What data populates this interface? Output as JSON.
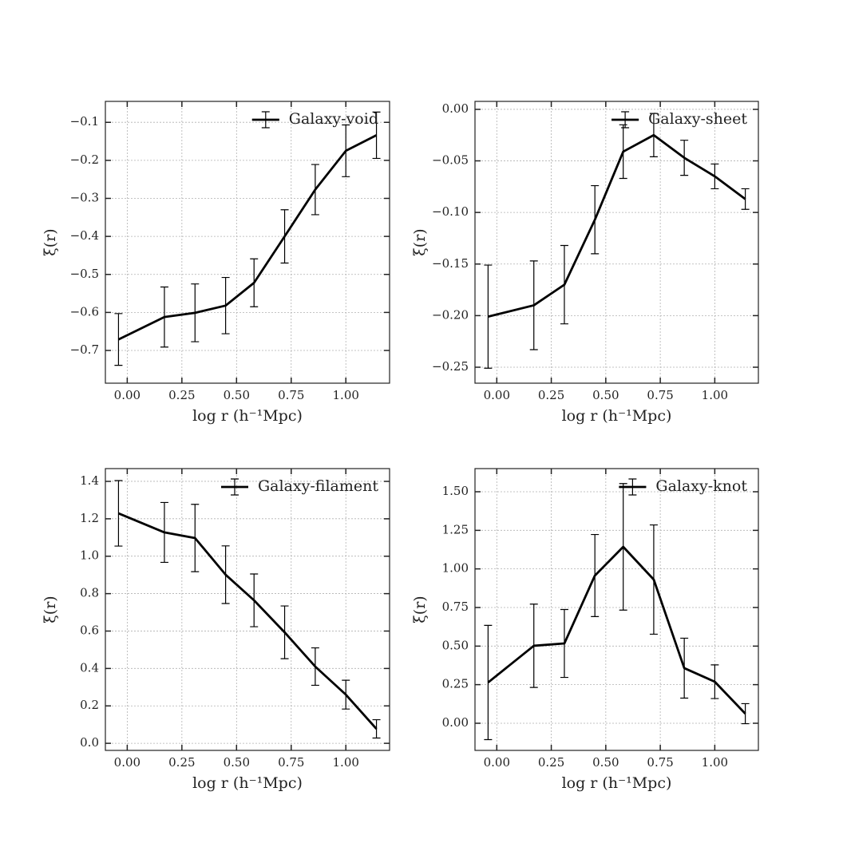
{
  "chart_data": [
    {
      "type": "line",
      "xlabel": "log r (h⁻¹Mpc)",
      "ylabel": "ξ(r)",
      "grid": true,
      "legend": "upper right",
      "x": [
        -0.04,
        0.17,
        0.31,
        0.45,
        0.58,
        0.72,
        0.86,
        1.0,
        1.14
      ],
      "series": [
        {
          "name": "Galaxy-void",
          "color": "#000000",
          "values": [
            -0.671,
            -0.612,
            -0.601,
            -0.582,
            -0.522,
            -0.4,
            -0.277,
            -0.175,
            -0.134
          ],
          "errors": [
            0.068,
            0.079,
            0.076,
            0.074,
            0.063,
            0.07,
            0.066,
            0.068,
            0.061
          ]
        }
      ],
      "xlim": [
        -0.1,
        1.2
      ],
      "ylim": [
        -0.786,
        -0.045
      ],
      "xticks": [
        {
          "value": 0,
          "label": "0.00"
        },
        {
          "value": 0.25,
          "label": "0.25"
        },
        {
          "value": 0.5,
          "label": "0.50"
        },
        {
          "value": 0.75,
          "label": "0.75"
        },
        {
          "value": 1,
          "label": "1.00"
        }
      ],
      "yticks": [
        {
          "value": -0.7,
          "label": "−0.7"
        },
        {
          "value": -0.6,
          "label": "−0.6"
        },
        {
          "value": -0.5,
          "label": "−0.5"
        },
        {
          "value": -0.4,
          "label": "−0.4"
        },
        {
          "value": -0.3,
          "label": "−0.3"
        },
        {
          "value": -0.2,
          "label": "−0.2"
        },
        {
          "value": -0.1,
          "label": "−0.1"
        }
      ]
    },
    {
      "type": "line",
      "xlabel": "log r (h⁻¹Mpc)",
      "ylabel": "ξ(r)",
      "grid": true,
      "legend": "upper right",
      "x": [
        -0.04,
        0.17,
        0.31,
        0.45,
        0.58,
        0.72,
        0.86,
        1.0,
        1.14
      ],
      "series": [
        {
          "name": "Galaxy-sheet",
          "color": "#000000",
          "values": [
            -0.201,
            -0.19,
            -0.17,
            -0.107,
            -0.041,
            -0.025,
            -0.047,
            -0.065,
            -0.087
          ],
          "errors": [
            0.05,
            0.043,
            0.038,
            0.033,
            0.026,
            0.021,
            0.017,
            0.012,
            0.01
          ]
        }
      ],
      "xlim": [
        -0.1,
        1.2
      ],
      "ylim": [
        -0.2655,
        0.0077
      ],
      "xticks": [
        {
          "value": 0,
          "label": "0.00"
        },
        {
          "value": 0.25,
          "label": "0.25"
        },
        {
          "value": 0.5,
          "label": "0.50"
        },
        {
          "value": 0.75,
          "label": "0.75"
        },
        {
          "value": 1,
          "label": "1.00"
        }
      ],
      "yticks": [
        {
          "value": -0.25,
          "label": "−0.25"
        },
        {
          "value": -0.2,
          "label": "−0.20"
        },
        {
          "value": -0.15,
          "label": "−0.15"
        },
        {
          "value": -0.1,
          "label": "−0.10"
        },
        {
          "value": -0.05,
          "label": "−0.05"
        },
        {
          "value": 0,
          "label": "0.00"
        }
      ]
    },
    {
      "type": "line",
      "xlabel": "log r (h⁻¹Mpc)",
      "ylabel": "ξ(r)",
      "grid": true,
      "legend": "upper right",
      "x": [
        -0.04,
        0.17,
        0.31,
        0.45,
        0.58,
        0.72,
        0.86,
        1.0,
        1.14
      ],
      "series": [
        {
          "name": "Galaxy-filament",
          "color": "#000000",
          "values": [
            1.229,
            1.127,
            1.097,
            0.901,
            0.764,
            0.593,
            0.41,
            0.26,
            0.077
          ],
          "errors": [
            0.175,
            0.16,
            0.18,
            0.154,
            0.141,
            0.141,
            0.1,
            0.077,
            0.049
          ]
        }
      ],
      "xlim": [
        -0.1,
        1.2
      ],
      "ylim": [
        -0.038,
        1.468
      ],
      "xticks": [
        {
          "value": 0,
          "label": "0.00"
        },
        {
          "value": 0.25,
          "label": "0.25"
        },
        {
          "value": 0.5,
          "label": "0.50"
        },
        {
          "value": 0.75,
          "label": "0.75"
        },
        {
          "value": 1,
          "label": "1.00"
        }
      ],
      "yticks": [
        {
          "value": 0,
          "label": "0.0"
        },
        0.2,
        0.4,
        0.6,
        0.8,
        {
          "value": 1,
          "label": "1.0"
        },
        1.2,
        1.4
      ]
    },
    {
      "type": "line",
      "xlabel": "log r (h⁻¹Mpc)",
      "ylabel": "ξ(r)",
      "grid": true,
      "legend": "upper right",
      "x": [
        -0.04,
        0.17,
        0.31,
        0.45,
        0.58,
        0.72,
        0.86,
        1.0,
        1.14
      ],
      "series": [
        {
          "name": "Galaxy-knot",
          "color": "#000000",
          "values": [
            0.264,
            0.502,
            0.517,
            0.957,
            1.143,
            0.931,
            0.357,
            0.269,
            0.062
          ],
          "errors": [
            0.37,
            0.27,
            0.22,
            0.266,
            0.41,
            0.354,
            0.194,
            0.109,
            0.065
          ]
        }
      ],
      "xlim": [
        -0.1,
        1.2
      ],
      "ylim": [
        -0.176,
        1.65
      ],
      "xticks": [
        {
          "value": 0,
          "label": "0.00"
        },
        {
          "value": 0.25,
          "label": "0.25"
        },
        {
          "value": 0.5,
          "label": "0.50"
        },
        {
          "value": 0.75,
          "label": "0.75"
        },
        {
          "value": 1,
          "label": "1.00"
        }
      ],
      "yticks": [
        {
          "value": 0,
          "label": "0.00"
        },
        0.25,
        {
          "value": 0.5,
          "label": "0.50"
        },
        0.75,
        {
          "value": 1,
          "label": "1.00"
        },
        1.25,
        {
          "value": 1.5,
          "label": "1.50"
        }
      ]
    }
  ]
}
